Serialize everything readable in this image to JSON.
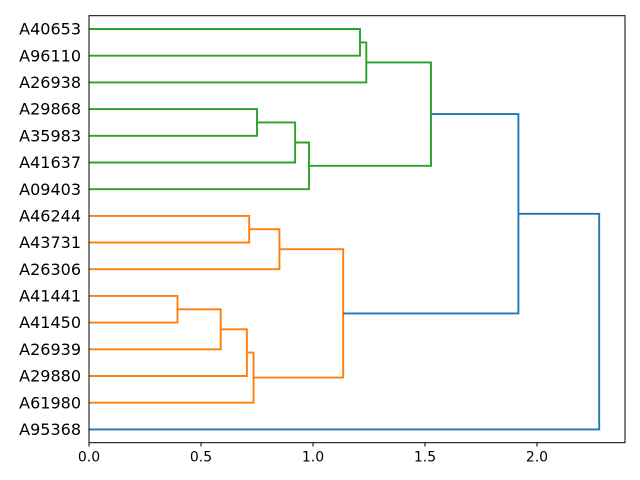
{
  "chart_data": {
    "type": "dendrogram",
    "orientation": "right",
    "title": "",
    "xlabel": "",
    "ylabel": "",
    "grid": false,
    "legend": null,
    "xlim": [
      0,
      2.393
    ],
    "x_tick_values": [
      0,
      0.5,
      1.0,
      1.5,
      2.0
    ],
    "x_tick_labels": [
      "0.0",
      "0.5",
      "1.0",
      "1.5",
      "2.0"
    ],
    "leaves": [
      "A40653",
      "A96110",
      "A26938",
      "A29868",
      "A35983",
      "A41637",
      "A09403",
      "A46244",
      "A43731",
      "A26306",
      "A41441",
      "A41450",
      "A26939",
      "A29880",
      "A61980",
      "A95368"
    ],
    "palette": {
      "green": "#2ca02c",
      "orange": "#ff7f0e",
      "blue": "#1f77b4",
      "spine": "#000000",
      "text": "#000000",
      "background": "#ffffff"
    },
    "merges": [
      {
        "id": "n1",
        "children": [
          "A40653",
          "A96110"
        ],
        "distance": 1.21,
        "color": "green"
      },
      {
        "id": "n2",
        "children": [
          "n1",
          "A26938"
        ],
        "distance": 1.238,
        "color": "green"
      },
      {
        "id": "n3",
        "children": [
          "A29868",
          "A35983"
        ],
        "distance": 0.75,
        "color": "green"
      },
      {
        "id": "n4",
        "children": [
          "n3",
          "A41637"
        ],
        "distance": 0.92,
        "color": "green"
      },
      {
        "id": "n5",
        "children": [
          "n4",
          "A09403"
        ],
        "distance": 0.982,
        "color": "green"
      },
      {
        "id": "n6",
        "children": [
          "n2",
          "n5"
        ],
        "distance": 1.527,
        "color": "green"
      },
      {
        "id": "n7",
        "children": [
          "A46244",
          "A43731"
        ],
        "distance": 0.715,
        "color": "orange"
      },
      {
        "id": "n8",
        "children": [
          "n7",
          "A26306"
        ],
        "distance": 0.85,
        "color": "orange"
      },
      {
        "id": "n9",
        "children": [
          "A41441",
          "A41450"
        ],
        "distance": 0.395,
        "color": "orange"
      },
      {
        "id": "n10",
        "children": [
          "n9",
          "A26939"
        ],
        "distance": 0.588,
        "color": "orange"
      },
      {
        "id": "n11",
        "children": [
          "n10",
          "A29880"
        ],
        "distance": 0.705,
        "color": "orange"
      },
      {
        "id": "n12",
        "children": [
          "n11",
          "A61980"
        ],
        "distance": 0.735,
        "color": "orange"
      },
      {
        "id": "n13",
        "children": [
          "n8",
          "n12"
        ],
        "distance": 1.135,
        "color": "orange"
      },
      {
        "id": "n14",
        "children": [
          "n6",
          "n13"
        ],
        "distance": 1.917,
        "color": "blue"
      },
      {
        "id": "n15",
        "children": [
          "n14",
          "A95368"
        ],
        "distance": 2.278,
        "color": "blue"
      }
    ]
  }
}
